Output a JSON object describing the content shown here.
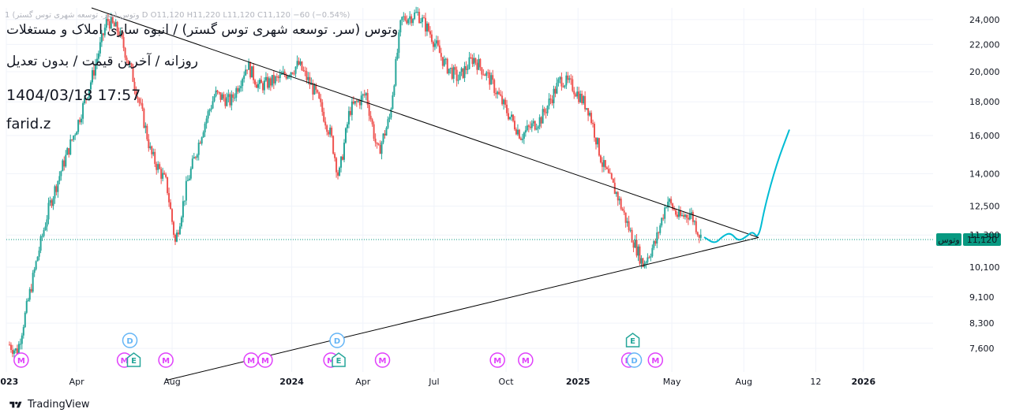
{
  "legend_line": "وتوس (سر. توسعه شهری توس گستر) 1 D O11,120 H11,220 L11,120 C11,120 −60 (−0.54%)",
  "title": "وتوس (سر. توسعه شهری توس گستر) / انبوه سازی املاک و مستغلات",
  "subtitle": "روزانه / آخرین قیمت / بدون تعدیل",
  "datetime": "1404/03/18 17:57",
  "author": "farid.z",
  "brand": "TradingView",
  "colors": {
    "up": "#26a69a",
    "down": "#ef5350",
    "price_line": "#089981",
    "projection": "#00bcd4",
    "trendline": "#000000",
    "marker_m": "#e040fb",
    "marker_d": "#64b5f6",
    "marker_e": "#26a69a",
    "grid": "#f0f3fa"
  },
  "chart_data": {
    "type": "candlestick",
    "symbol": "وتوس",
    "last_price": 11120,
    "last_price_label": "11,120",
    "symbol_tag": "وتوس",
    "y_scale": "log",
    "ylim": [
      7000,
      25000
    ],
    "y_ticks": [
      24000,
      22000,
      20000,
      18000,
      16000,
      14000,
      12500,
      11300,
      10100,
      9100,
      8300,
      7600
    ],
    "y_tick_labels": [
      "24,000",
      "22,000",
      "20,000",
      "18,000",
      "16,000",
      "14,000",
      "12,500",
      "11,300",
      "10,100",
      "9,100",
      "8,300",
      "7,600"
    ],
    "x_range": [
      "2023-01-01",
      "2026-03-31"
    ],
    "x_ticks": [
      {
        "date": "2023-01-01",
        "label": "2023",
        "major": true
      },
      {
        "date": "2023-04-01",
        "label": "Apr",
        "major": false
      },
      {
        "date": "2023-08-01",
        "label": "Aug",
        "major": false
      },
      {
        "date": "2024-01-01",
        "label": "2024",
        "major": true
      },
      {
        "date": "2024-04-01",
        "label": "Apr",
        "major": false
      },
      {
        "date": "2024-07-01",
        "label": "Jul",
        "major": false
      },
      {
        "date": "2024-10-01",
        "label": "Oct",
        "major": false
      },
      {
        "date": "2025-01-01",
        "label": "2025",
        "major": true
      },
      {
        "date": "2025-05-01",
        "label": "May",
        "major": false
      },
      {
        "date": "2025-08-01",
        "label": "Aug",
        "major": false
      },
      {
        "date": "2025-11-01",
        "label": "12",
        "major": false
      },
      {
        "date": "2026-01-01",
        "label": "2026",
        "major": true
      }
    ],
    "price_path": [
      {
        "date": "2023-01-05",
        "price": 7700
      },
      {
        "date": "2023-01-15",
        "price": 7500
      },
      {
        "date": "2023-02-10",
        "price": 10500
      },
      {
        "date": "2023-02-25",
        "price": 12500
      },
      {
        "date": "2023-03-15",
        "price": 14500
      },
      {
        "date": "2023-04-01",
        "price": 16500
      },
      {
        "date": "2023-04-20",
        "price": 19500
      },
      {
        "date": "2023-05-10",
        "price": 24000
      },
      {
        "date": "2023-05-25",
        "price": 23000
      },
      {
        "date": "2023-06-10",
        "price": 20000
      },
      {
        "date": "2023-06-25",
        "price": 17000
      },
      {
        "date": "2023-07-05",
        "price": 15000
      },
      {
        "date": "2023-07-25",
        "price": 13500
      },
      {
        "date": "2023-08-05",
        "price": 11000
      },
      {
        "date": "2023-08-20",
        "price": 13500
      },
      {
        "date": "2023-09-10",
        "price": 16500
      },
      {
        "date": "2023-09-25",
        "price": 18500
      },
      {
        "date": "2023-10-15",
        "price": 18000
      },
      {
        "date": "2023-11-05",
        "price": 20500
      },
      {
        "date": "2023-11-20",
        "price": 19000
      },
      {
        "date": "2023-12-15",
        "price": 19500
      },
      {
        "date": "2024-01-10",
        "price": 20500
      },
      {
        "date": "2024-02-01",
        "price": 18500
      },
      {
        "date": "2024-02-20",
        "price": 16000
      },
      {
        "date": "2024-03-01",
        "price": 13800
      },
      {
        "date": "2024-03-15",
        "price": 17500
      },
      {
        "date": "2024-04-05",
        "price": 18500
      },
      {
        "date": "2024-04-20",
        "price": 15000
      },
      {
        "date": "2024-05-05",
        "price": 17000
      },
      {
        "date": "2024-05-20",
        "price": 24000
      },
      {
        "date": "2024-06-10",
        "price": 24500
      },
      {
        "date": "2024-06-25",
        "price": 23000
      },
      {
        "date": "2024-07-15",
        "price": 20500
      },
      {
        "date": "2024-08-01",
        "price": 19500
      },
      {
        "date": "2024-08-20",
        "price": 21000
      },
      {
        "date": "2024-09-10",
        "price": 19500
      },
      {
        "date": "2024-10-01",
        "price": 17500
      },
      {
        "date": "2024-10-20",
        "price": 16000
      },
      {
        "date": "2024-11-15",
        "price": 17000
      },
      {
        "date": "2024-12-10",
        "price": 19500
      },
      {
        "date": "2024-12-25",
        "price": 19000
      },
      {
        "date": "2025-01-15",
        "price": 17500
      },
      {
        "date": "2025-02-01",
        "price": 14500
      },
      {
        "date": "2025-02-20",
        "price": 13000
      },
      {
        "date": "2025-03-10",
        "price": 11300
      },
      {
        "date": "2025-03-25",
        "price": 10200
      },
      {
        "date": "2025-04-10",
        "price": 11000
      },
      {
        "date": "2025-04-25",
        "price": 12800
      },
      {
        "date": "2025-05-10",
        "price": 12000
      },
      {
        "date": "2025-05-25",
        "price": 12200
      },
      {
        "date": "2025-06-08",
        "price": 11120
      }
    ],
    "projection_path": [
      {
        "date": "2025-06-12",
        "price": 11200
      },
      {
        "date": "2025-06-25",
        "price": 10950
      },
      {
        "date": "2025-07-05",
        "price": 11250
      },
      {
        "date": "2025-07-15",
        "price": 11400
      },
      {
        "date": "2025-07-25",
        "price": 11050
      },
      {
        "date": "2025-08-05",
        "price": 11250
      },
      {
        "date": "2025-08-12",
        "price": 11450
      },
      {
        "date": "2025-08-20",
        "price": 11150
      },
      {
        "date": "2025-08-28",
        "price": 12500
      },
      {
        "date": "2025-09-12",
        "price": 14500
      },
      {
        "date": "2025-09-28",
        "price": 16300
      }
    ],
    "trendlines": [
      {
        "from": {
          "date": "2023-04-20",
          "price": 25000
        },
        "to": {
          "date": "2025-08-20",
          "price": 11200
        }
      },
      {
        "from": {
          "date": "2023-07-25",
          "price": 6800
        },
        "to": {
          "date": "2025-08-20",
          "price": 11200
        }
      }
    ],
    "event_markers": [
      {
        "date": "2023-01-20",
        "label": "M",
        "row": 0
      },
      {
        "date": "2023-06-01",
        "label": "M",
        "row": 0
      },
      {
        "date": "2023-06-08",
        "label": "D",
        "row": 1
      },
      {
        "date": "2023-06-13",
        "label": "E",
        "row": 0
      },
      {
        "date": "2023-07-24",
        "label": "M",
        "row": 0
      },
      {
        "date": "2023-11-10",
        "label": "M",
        "row": 0
      },
      {
        "date": "2023-11-28",
        "label": "M",
        "row": 0
      },
      {
        "date": "2024-02-20",
        "label": "M",
        "row": 0
      },
      {
        "date": "2024-02-28",
        "label": "D",
        "row": 1
      },
      {
        "date": "2024-03-01",
        "label": "E",
        "row": 0
      },
      {
        "date": "2024-04-26",
        "label": "M",
        "row": 0
      },
      {
        "date": "2024-09-20",
        "label": "M",
        "row": 0
      },
      {
        "date": "2024-10-26",
        "label": "M",
        "row": 0
      },
      {
        "date": "2025-03-07",
        "label": "M",
        "row": 0
      },
      {
        "date": "2025-03-12",
        "label": "E",
        "row": 1
      },
      {
        "date": "2025-03-14",
        "label": "D",
        "row": 0
      },
      {
        "date": "2025-04-10",
        "label": "M",
        "row": 0
      }
    ]
  }
}
